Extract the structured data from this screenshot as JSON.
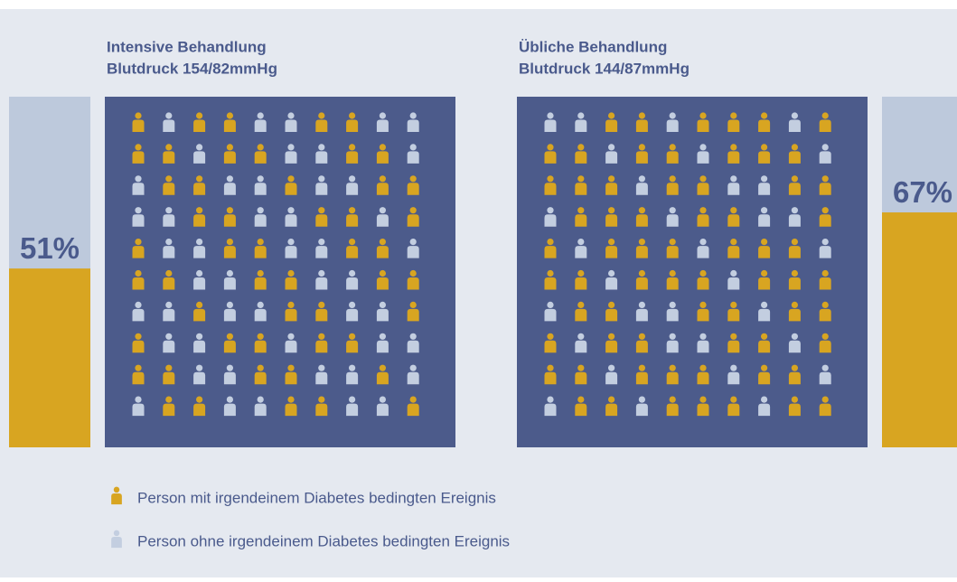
{
  "chart_data": [
    {
      "type": "icon-array",
      "title": [
        "Intensive Behandlung",
        "Blutdruck 154/82mmHg"
      ],
      "values": [
        51
      ],
      "value_labels": [
        "51%"
      ],
      "side": "left"
    },
    {
      "type": "icon-array",
      "title": [
        "Übliche Behandlung",
        "Blutdruck 144/87mmHg"
      ],
      "values": [
        67
      ],
      "value_labels": [
        "67%"
      ],
      "side": "right"
    }
  ],
  "legend": [
    {
      "label": "Person mit irgendeinem Diabetes bedingten Ereignis",
      "color": "#d8a521"
    },
    {
      "label": "Person ohne irgendeinem Diabetes bedingten Ereignis",
      "color": "#c3cee0"
    }
  ]
}
